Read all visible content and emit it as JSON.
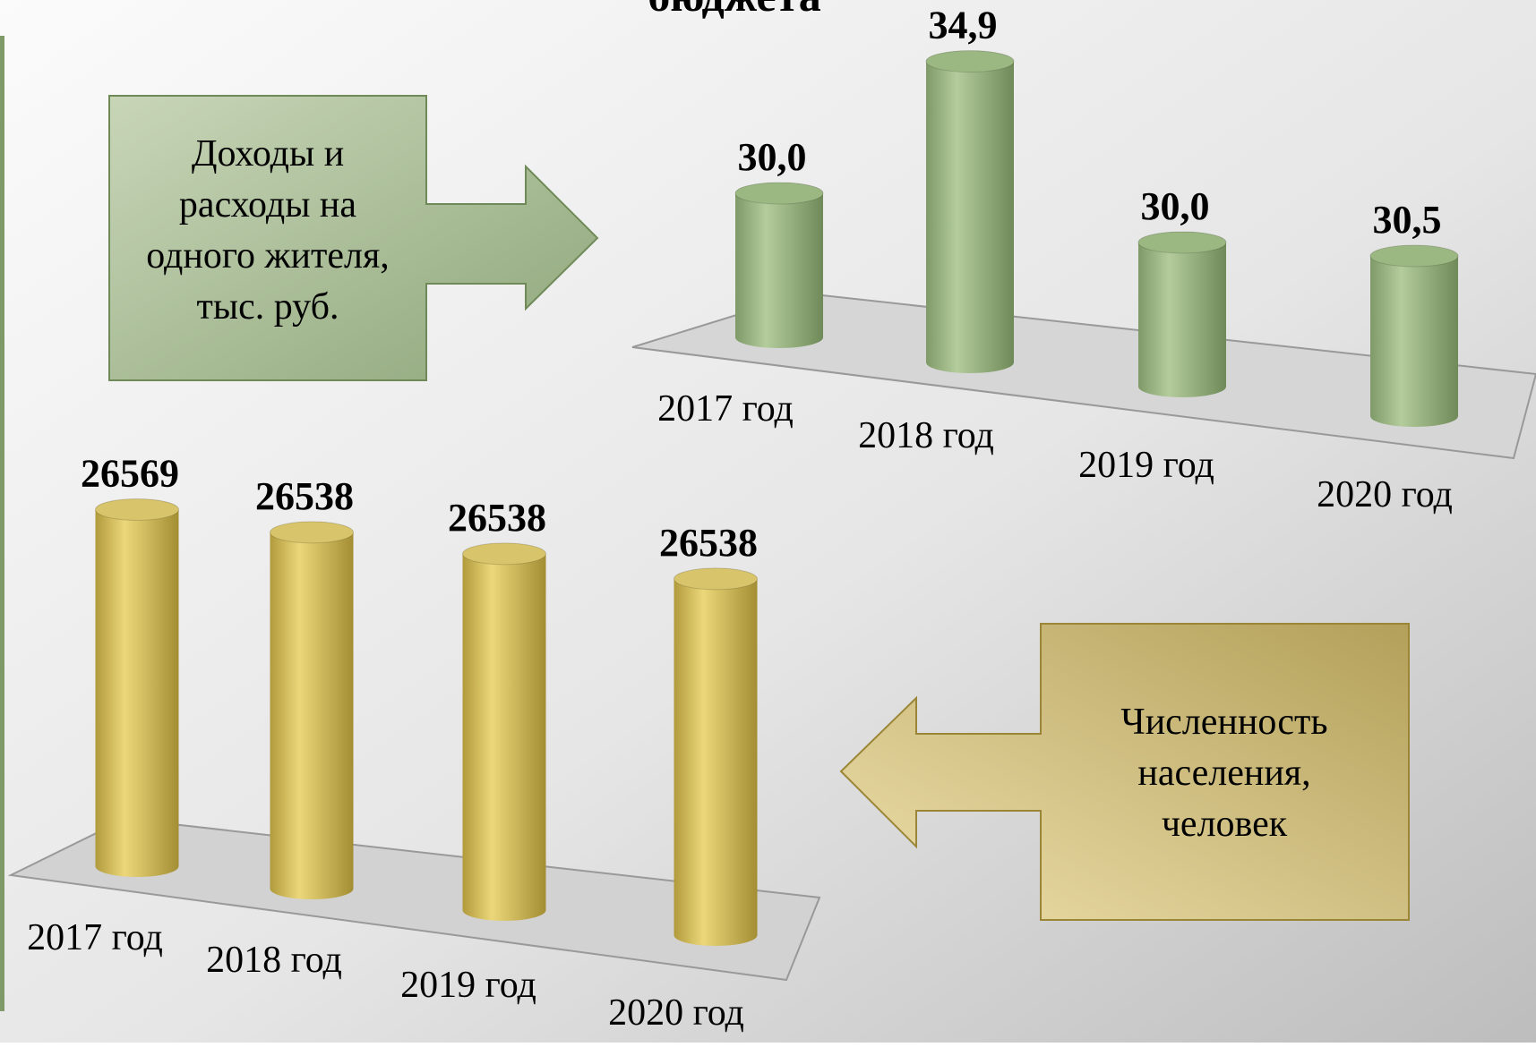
{
  "title": "бюджета",
  "chart_data": [
    {
      "type": "bar3d",
      "annotation": [
        "Доходы и",
        "расходы на",
        "одного жителя,",
        "тыс. руб."
      ],
      "categories": [
        "2017 год",
        "2018 год",
        "2019 год",
        "2020 год"
      ],
      "values": [
        30.0,
        34.9,
        30.0,
        30.5
      ],
      "value_labels": [
        "30,0",
        "34,9",
        "30,0",
        "30,5"
      ],
      "color": "#9cb882",
      "ylim": [
        25.5,
        35
      ]
    },
    {
      "type": "bar3d",
      "annotation": [
        "Численность",
        "населения,",
        "человек"
      ],
      "categories": [
        "2017 год",
        "2018 год",
        "2019 год",
        "2020 год"
      ],
      "values": [
        26569,
        26538,
        26538,
        26538
      ],
      "color": "#d8c46a",
      "ylim": [
        0,
        28000
      ]
    }
  ]
}
